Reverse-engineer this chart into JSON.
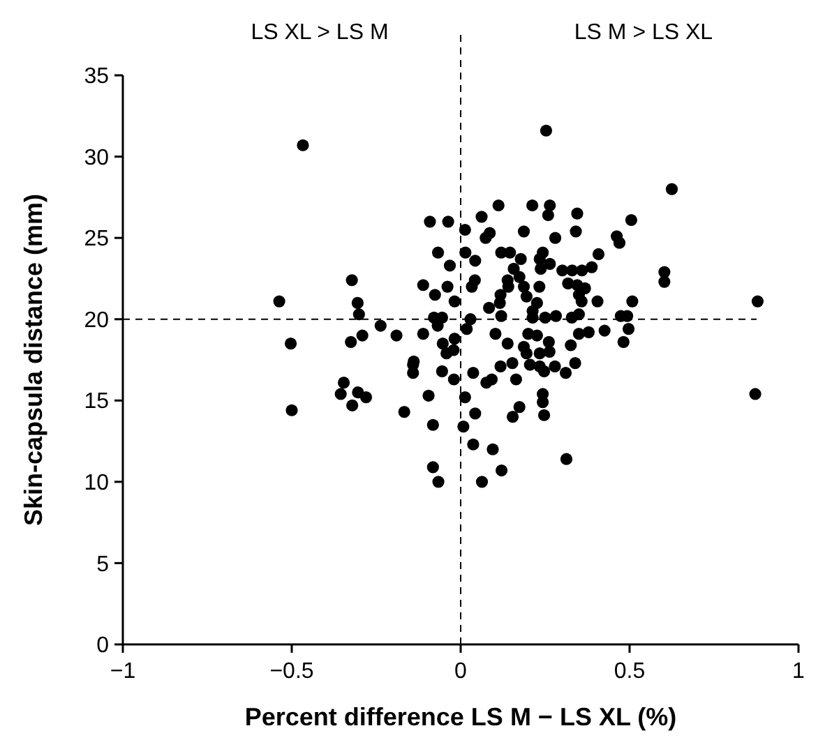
{
  "chart_data": {
    "type": "scatter",
    "xlabel": "Percent difference LS M − LS XL (%)",
    "ylabel": "Skin-capsula distance (mm)",
    "annotations": [
      "LS XL > LS M",
      "LS M > LS XL"
    ],
    "xlim": [
      -1,
      1
    ],
    "ylim": [
      0,
      35
    ],
    "xticks": [
      {
        "value": -1,
        "label": "−1"
      },
      {
        "value": -0.5,
        "label": "−0.5"
      },
      0,
      0.5,
      1
    ],
    "yticks": [
      0,
      5,
      10,
      15,
      20,
      25,
      30,
      35
    ],
    "grid": false,
    "marker": "circle",
    "ref_lines": [
      {
        "axis": "x",
        "value": 0,
        "line_style": "dashed",
        "color": "#000000"
      },
      {
        "axis": "y",
        "value": 20,
        "line_style": "dashed",
        "color": "#000000"
      }
    ],
    "series": [
      {
        "color": "#000000",
        "x": [
          -0.467,
          -0.537,
          -0.503,
          -0.322,
          -0.305,
          -0.301,
          -0.291,
          -0.325,
          -0.237,
          -0.19,
          -0.111,
          -0.111,
          -0.091,
          -0.139,
          -0.5,
          -0.346,
          -0.355,
          -0.321,
          -0.304,
          -0.28,
          -0.167,
          -0.141,
          -0.141,
          -0.095,
          -0.082,
          -0.082,
          0.253,
          0.625,
          0.112,
          0.212,
          0.264,
          0.259,
          0.345,
          -0.037,
          0.062,
          0.013,
          0.187,
          0.341,
          0.505,
          0.086,
          0.074,
          0.28,
          0.462,
          0.47,
          -0.067,
          0.014,
          0.12,
          0.146,
          0.243,
          0.408,
          0.043,
          0.178,
          0.234,
          -0.032,
          0.264,
          0.157,
          0.237,
          0.301,
          0.33,
          0.359,
          0.388,
          0.603,
          0.603,
          0.174,
          0.139,
          -0.039,
          0.042,
          0.033,
          0.141,
          0.187,
          0.233,
          0.318,
          0.345,
          0.368,
          -0.076,
          0.118,
          0.195,
          0.35,
          -0.018,
          0.116,
          0.226,
          0.358,
          0.405,
          0.508,
          0.879,
          0.084,
          0.213,
          -0.079,
          -0.055,
          0.029,
          0.12,
          0.213,
          0.25,
          0.282,
          0.329,
          0.35,
          0.474,
          0.493,
          -0.068,
          0.018,
          0.103,
          0.2,
          0.226,
          0.35,
          0.379,
          0.426,
          0.497,
          -0.053,
          -0.018,
          0.139,
          0.261,
          0.482,
          -0.021,
          -0.042,
          0.187,
          0.195,
          0.234,
          0.263,
          0.326,
          0.205,
          0.234,
          0.247,
          0.279,
          0.311,
          0.339,
          0.118,
          0.153,
          0.164,
          0.037,
          0.092,
          0.076,
          -0.055,
          -0.02,
          0.013,
          0.243,
          0.243,
          0.247,
          0.174,
          0.154,
          0.043,
          0.008,
          0.037,
          0.095,
          0.313,
          -0.066,
          0.121,
          0.063,
          0.872
        ],
        "values": [
          30.7,
          21.1,
          18.5,
          22.4,
          21,
          20.3,
          19,
          18.6,
          19.6,
          19,
          19.1,
          22.1,
          26,
          17.4,
          14.4,
          16.1,
          15.4,
          14.7,
          15.5,
          15.2,
          14.3,
          17.2,
          16.7,
          15.3,
          13.5,
          10.9,
          31.6,
          28,
          27,
          27,
          27,
          26.4,
          26.5,
          26,
          26.3,
          25.5,
          25.4,
          25.4,
          26.1,
          25.3,
          25,
          25,
          25.1,
          24.7,
          24.1,
          24.1,
          24.1,
          24.1,
          24.1,
          24,
          23.6,
          23.7,
          23.7,
          23.3,
          23.4,
          23.1,
          23.1,
          23,
          23,
          23,
          23.2,
          22.9,
          22.3,
          22.6,
          22.4,
          22,
          22.4,
          22,
          22,
          22,
          22,
          22.2,
          22.1,
          21.9,
          21.5,
          21.5,
          21.4,
          21.5,
          21.1,
          21,
          21,
          21.1,
          21.1,
          21.1,
          21.1,
          20.7,
          20.5,
          20.1,
          20.1,
          20,
          20.2,
          20.1,
          20.1,
          20.2,
          20.1,
          20.3,
          20.2,
          20.2,
          19.6,
          19.4,
          19.1,
          19.1,
          19,
          19.1,
          19.2,
          19.3,
          19.4,
          18.5,
          18.8,
          18.5,
          18.6,
          18.6,
          18.1,
          17.9,
          18.3,
          17.9,
          17.9,
          18,
          18.4,
          17.2,
          17.1,
          16.8,
          17.1,
          16.7,
          17.3,
          17.1,
          17.3,
          16.3,
          16.7,
          16.3,
          16.1,
          16.8,
          16.3,
          15.2,
          15.4,
          14.9,
          14.1,
          14.6,
          14,
          14.2,
          13.4,
          12.3,
          12,
          11.4,
          10,
          10.7,
          10,
          15.4
        ]
      }
    ]
  }
}
